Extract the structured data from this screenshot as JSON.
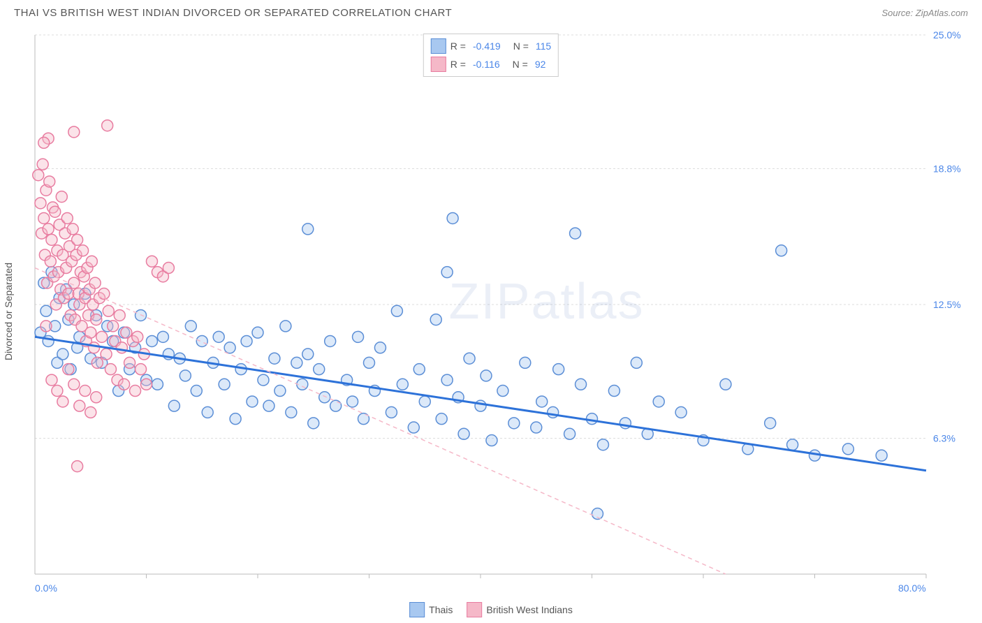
{
  "title": "THAI VS BRITISH WEST INDIAN DIVORCED OR SEPARATED CORRELATION CHART",
  "source": "Source: ZipAtlas.com",
  "ylabel": "Divorced or Separated",
  "watermark_bold": "ZIP",
  "watermark_rest": "atlas",
  "chart": {
    "type": "scatter",
    "xlim": [
      0,
      80
    ],
    "ylim": [
      0,
      25
    ],
    "x_start_label": "0.0%",
    "x_end_label": "80.0%",
    "y_ticks": [
      {
        "v": 6.3,
        "label": "6.3%"
      },
      {
        "v": 12.5,
        "label": "12.5%"
      },
      {
        "v": 18.8,
        "label": "18.8%"
      },
      {
        "v": 25.0,
        "label": "25.0%"
      }
    ],
    "x_ticks": [
      10,
      20,
      30,
      40,
      50,
      60,
      70,
      80
    ],
    "grid_color": "#dddddd",
    "axis_color": "#bbbbbb",
    "background_color": "#ffffff",
    "marker_radius": 8,
    "marker_stroke_width": 1.5,
    "marker_fill_opacity": 0.4,
    "series": [
      {
        "name": "Thais",
        "r": -0.419,
        "n": 115,
        "color_fill": "#a8c8f0",
        "color_stroke": "#5b8ed6",
        "trend_color": "#2d72d9",
        "trend_width": 3,
        "trend_dash": "none",
        "trend": {
          "x1": 0,
          "y1": 11.0,
          "x2": 80,
          "y2": 4.8
        },
        "points": [
          [
            0.5,
            11.2
          ],
          [
            0.8,
            13.5
          ],
          [
            1.0,
            12.2
          ],
          [
            1.2,
            10.8
          ],
          [
            1.5,
            14.0
          ],
          [
            1.8,
            11.5
          ],
          [
            2.0,
            9.8
          ],
          [
            2.2,
            12.8
          ],
          [
            2.5,
            10.2
          ],
          [
            2.8,
            13.2
          ],
          [
            3.0,
            11.8
          ],
          [
            3.2,
            9.5
          ],
          [
            3.5,
            12.5
          ],
          [
            3.8,
            10.5
          ],
          [
            4.0,
            11.0
          ],
          [
            4.5,
            13.0
          ],
          [
            5.0,
            10.0
          ],
          [
            5.5,
            12.0
          ],
          [
            6.0,
            9.8
          ],
          [
            6.5,
            11.5
          ],
          [
            7.0,
            10.8
          ],
          [
            7.5,
            8.5
          ],
          [
            8.0,
            11.2
          ],
          [
            8.5,
            9.5
          ],
          [
            9.0,
            10.5
          ],
          [
            9.5,
            12.0
          ],
          [
            10.0,
            9.0
          ],
          [
            10.5,
            10.8
          ],
          [
            11.0,
            8.8
          ],
          [
            11.5,
            11.0
          ],
          [
            12.0,
            10.2
          ],
          [
            12.5,
            7.8
          ],
          [
            13.0,
            10.0
          ],
          [
            13.5,
            9.2
          ],
          [
            14.0,
            11.5
          ],
          [
            14.5,
            8.5
          ],
          [
            15.0,
            10.8
          ],
          [
            15.5,
            7.5
          ],
          [
            16.0,
            9.8
          ],
          [
            16.5,
            11.0
          ],
          [
            17.0,
            8.8
          ],
          [
            17.5,
            10.5
          ],
          [
            18.0,
            7.2
          ],
          [
            18.5,
            9.5
          ],
          [
            19.0,
            10.8
          ],
          [
            19.5,
            8.0
          ],
          [
            20.0,
            11.2
          ],
          [
            20.5,
            9.0
          ],
          [
            21.0,
            7.8
          ],
          [
            21.5,
            10.0
          ],
          [
            22.0,
            8.5
          ],
          [
            22.5,
            11.5
          ],
          [
            23.0,
            7.5
          ],
          [
            23.5,
            9.8
          ],
          [
            24.0,
            8.8
          ],
          [
            24.5,
            10.2
          ],
          [
            25.0,
            7.0
          ],
          [
            25.5,
            9.5
          ],
          [
            26.0,
            8.2
          ],
          [
            26.5,
            10.8
          ],
          [
            27.0,
            7.8
          ],
          [
            28.0,
            9.0
          ],
          [
            28.5,
            8.0
          ],
          [
            29.0,
            11.0
          ],
          [
            29.5,
            7.2
          ],
          [
            30.0,
            9.8
          ],
          [
            30.5,
            8.5
          ],
          [
            31.0,
            10.5
          ],
          [
            32.0,
            7.5
          ],
          [
            32.5,
            12.2
          ],
          [
            33.0,
            8.8
          ],
          [
            34.0,
            6.8
          ],
          [
            34.5,
            9.5
          ],
          [
            35.0,
            8.0
          ],
          [
            36.0,
            11.8
          ],
          [
            36.5,
            7.2
          ],
          [
            37.0,
            9.0
          ],
          [
            38.0,
            8.2
          ],
          [
            38.5,
            6.5
          ],
          [
            39.0,
            10.0
          ],
          [
            40.0,
            7.8
          ],
          [
            40.5,
            9.2
          ],
          [
            41.0,
            6.2
          ],
          [
            42.0,
            8.5
          ],
          [
            43.0,
            7.0
          ],
          [
            44.0,
            9.8
          ],
          [
            45.0,
            6.8
          ],
          [
            45.5,
            8.0
          ],
          [
            46.5,
            7.5
          ],
          [
            47.0,
            9.5
          ],
          [
            48.0,
            6.5
          ],
          [
            49.0,
            8.8
          ],
          [
            50.0,
            7.2
          ],
          [
            51.0,
            6.0
          ],
          [
            52.0,
            8.5
          ],
          [
            53.0,
            7.0
          ],
          [
            54.0,
            9.8
          ],
          [
            55.0,
            6.5
          ],
          [
            56.0,
            8.0
          ],
          [
            58.0,
            7.5
          ],
          [
            60.0,
            6.2
          ],
          [
            62.0,
            8.8
          ],
          [
            64.0,
            5.8
          ],
          [
            66.0,
            7.0
          ],
          [
            68.0,
            6.0
          ],
          [
            70.0,
            5.5
          ],
          [
            73.0,
            5.8
          ],
          [
            76.0,
            5.5
          ],
          [
            24.5,
            16.0
          ],
          [
            37.5,
            16.5
          ],
          [
            37.0,
            14.0
          ],
          [
            48.5,
            15.8
          ],
          [
            67.0,
            15.0
          ],
          [
            50.5,
            2.8
          ]
        ]
      },
      {
        "name": "British West Indians",
        "r": -0.116,
        "n": 92,
        "color_fill": "#f5b8c8",
        "color_stroke": "#e87ca0",
        "trend_color": "#f5b8c8",
        "trend_width": 1.5,
        "trend_dash": "6,5",
        "trend": {
          "x1": 0,
          "y1": 14.2,
          "x2": 62,
          "y2": 0
        },
        "points": [
          [
            0.3,
            18.5
          ],
          [
            0.5,
            17.2
          ],
          [
            0.6,
            15.8
          ],
          [
            0.7,
            19.0
          ],
          [
            0.8,
            16.5
          ],
          [
            0.9,
            14.8
          ],
          [
            1.0,
            17.8
          ],
          [
            1.1,
            13.5
          ],
          [
            1.2,
            16.0
          ],
          [
            1.3,
            18.2
          ],
          [
            1.4,
            14.5
          ],
          [
            1.5,
            15.5
          ],
          [
            1.6,
            17.0
          ],
          [
            1.7,
            13.8
          ],
          [
            1.8,
            16.8
          ],
          [
            1.9,
            12.5
          ],
          [
            2.0,
            15.0
          ],
          [
            2.1,
            14.0
          ],
          [
            2.2,
            16.2
          ],
          [
            2.3,
            13.2
          ],
          [
            2.4,
            17.5
          ],
          [
            2.5,
            14.8
          ],
          [
            2.6,
            12.8
          ],
          [
            2.7,
            15.8
          ],
          [
            2.8,
            14.2
          ],
          [
            2.9,
            16.5
          ],
          [
            3.0,
            13.0
          ],
          [
            3.1,
            15.2
          ],
          [
            3.2,
            12.0
          ],
          [
            3.3,
            14.5
          ],
          [
            3.4,
            16.0
          ],
          [
            3.5,
            13.5
          ],
          [
            3.6,
            11.8
          ],
          [
            3.7,
            14.8
          ],
          [
            3.8,
            15.5
          ],
          [
            3.9,
            13.0
          ],
          [
            4.0,
            12.5
          ],
          [
            4.1,
            14.0
          ],
          [
            4.2,
            11.5
          ],
          [
            4.3,
            15.0
          ],
          [
            4.4,
            13.8
          ],
          [
            4.5,
            12.8
          ],
          [
            4.6,
            10.8
          ],
          [
            4.7,
            14.2
          ],
          [
            4.8,
            12.0
          ],
          [
            4.9,
            13.2
          ],
          [
            5.0,
            11.2
          ],
          [
            5.1,
            14.5
          ],
          [
            5.2,
            12.5
          ],
          [
            5.3,
            10.5
          ],
          [
            5.4,
            13.5
          ],
          [
            5.5,
            11.8
          ],
          [
            5.6,
            9.8
          ],
          [
            5.8,
            12.8
          ],
          [
            6.0,
            11.0
          ],
          [
            6.2,
            13.0
          ],
          [
            6.4,
            10.2
          ],
          [
            6.6,
            12.2
          ],
          [
            6.8,
            9.5
          ],
          [
            7.0,
            11.5
          ],
          [
            7.2,
            10.8
          ],
          [
            7.4,
            9.0
          ],
          [
            7.6,
            12.0
          ],
          [
            7.8,
            10.5
          ],
          [
            8.0,
            8.8
          ],
          [
            8.2,
            11.2
          ],
          [
            8.5,
            9.8
          ],
          [
            8.8,
            10.8
          ],
          [
            9.0,
            8.5
          ],
          [
            9.2,
            11.0
          ],
          [
            9.5,
            9.5
          ],
          [
            9.8,
            10.2
          ],
          [
            10.0,
            8.8
          ],
          [
            10.5,
            14.5
          ],
          [
            11.0,
            14.0
          ],
          [
            11.5,
            13.8
          ],
          [
            12.0,
            14.2
          ],
          [
            3.5,
            20.5
          ],
          [
            6.5,
            20.8
          ],
          [
            1.2,
            20.2
          ],
          [
            0.8,
            20.0
          ],
          [
            1.5,
            9.0
          ],
          [
            2.0,
            8.5
          ],
          [
            2.5,
            8.0
          ],
          [
            3.0,
            9.5
          ],
          [
            3.5,
            8.8
          ],
          [
            4.0,
            7.8
          ],
          [
            4.5,
            8.5
          ],
          [
            5.0,
            7.5
          ],
          [
            5.5,
            8.2
          ],
          [
            3.8,
            5.0
          ],
          [
            1.0,
            11.5
          ]
        ]
      }
    ],
    "legend_bottom": [
      {
        "label": "Thais",
        "fill": "#a8c8f0",
        "stroke": "#5b8ed6"
      },
      {
        "label": "British West Indians",
        "fill": "#f5b8c8",
        "stroke": "#e87ca0"
      }
    ]
  }
}
